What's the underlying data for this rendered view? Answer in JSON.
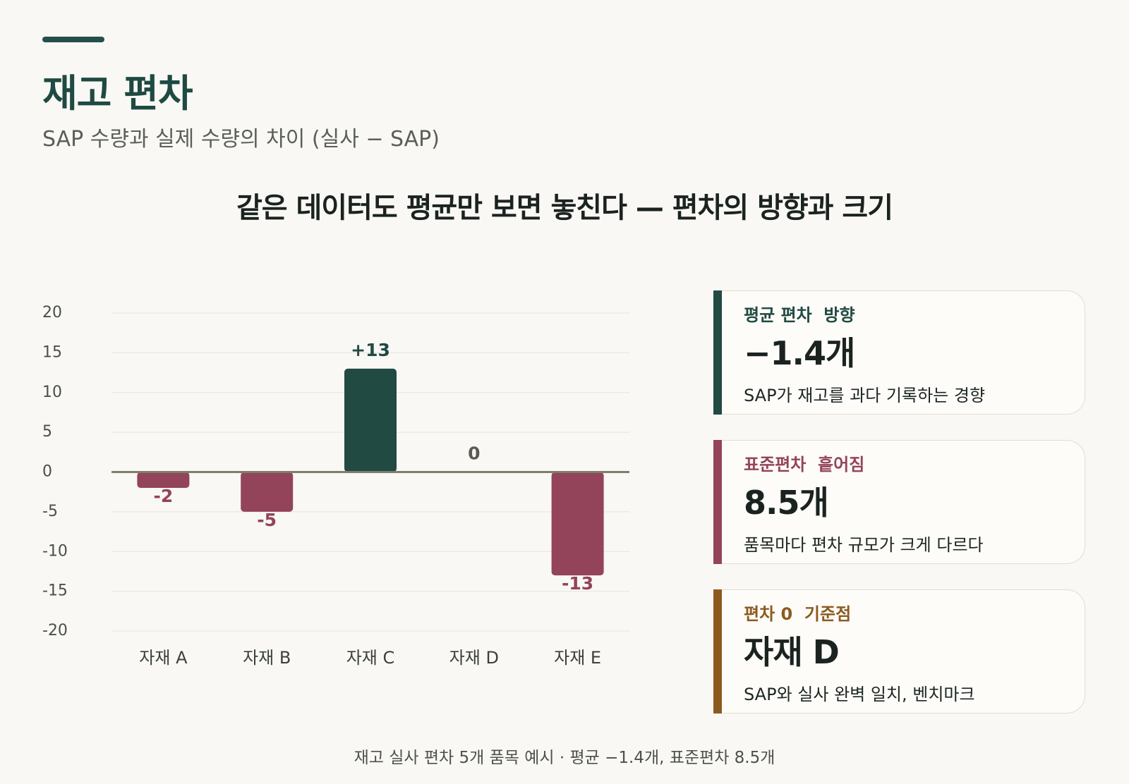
{
  "header": {
    "title": "재고 편차",
    "subtitle": "SAP 수량과 실제 수량의 차이 (실사 − SAP)"
  },
  "headline": "같은 데이터도 평균만 보면 놓친다 — 편차의 방향과 크기",
  "chart_data": {
    "type": "bar",
    "categories": [
      "자재 A",
      "자재 B",
      "자재 C",
      "자재 D",
      "자재 E"
    ],
    "values": [
      -2,
      -5,
      13,
      0,
      -13
    ],
    "data_labels": [
      "-2",
      "-5",
      "+13",
      "0",
      "-13"
    ],
    "yticks": [
      20,
      15,
      10,
      5,
      0,
      -5,
      -10,
      -15,
      -20
    ],
    "ylim": [
      -20,
      20
    ],
    "grid": true,
    "colors": {
      "positive": "#214a43",
      "negative": "#93445a",
      "zero_label": "#5a5a52"
    }
  },
  "cards": [
    {
      "label": "평균 편차  방향",
      "value": "−1.4개",
      "desc": "SAP가 재고를 과다 기록하는 경향",
      "color": "#214a43"
    },
    {
      "label": "표준편차  흩어짐",
      "value": "8.5개",
      "desc": "품목마다 편차 규모가 크게 다르다",
      "color": "#93445a"
    },
    {
      "label": "편차 0  기준점",
      "value": "자재 D",
      "desc": "SAP와 실사 완벽 일치, 벤치마크",
      "color": "#8c5a1e"
    }
  ],
  "footnote": "재고 실사 편차 5개 품목 예시 · 평균 −1.4개, 표준편차 8.5개"
}
